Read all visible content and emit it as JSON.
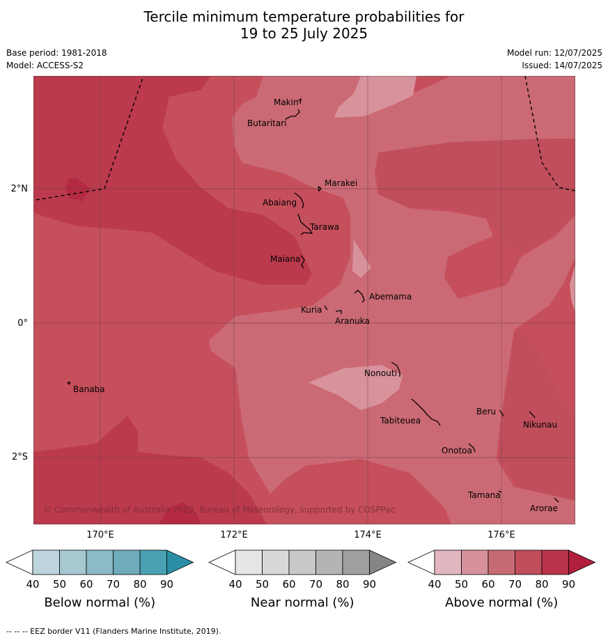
{
  "title": {
    "line1": "Tercile minimum temperature probabilities for",
    "line2": "19 to 25 July 2025"
  },
  "meta": {
    "base_period": "Base period: 1981-2018",
    "model": "Model: ACCESS-S2",
    "model_run": "Model run: 12/07/2025",
    "issued": "Issued: 14/07/2025"
  },
  "map": {
    "lat_labels": [
      "2°N",
      "0°",
      "2°S"
    ],
    "lon_labels": [
      "170°E",
      "172°E",
      "174°E",
      "176°E"
    ],
    "places": {
      "makin": "Makin",
      "butaritari": "Butaritari",
      "marakei": "Marakei",
      "abaiang": "Abaiang",
      "tarawa": "Tarawa",
      "maiana": "Maiana",
      "abemama": "Abemama",
      "kuria": "Kuria",
      "aranuka": "Aranuka",
      "nonouti": "Nonouti",
      "banaba": "Banaba",
      "beru": "Beru",
      "nikunau": "Nikunau",
      "tabiteuea": "Tabiteuea",
      "onotoa": "Onotoa",
      "tamana": "Tamana",
      "arorae": "Arorae"
    },
    "copyright": "© Commonwealth of Australia 2025, Bureau of Meteorology, supported by COSPPac"
  },
  "colorbars": {
    "below": {
      "label": "Below normal (%)",
      "ticks": [
        "40",
        "50",
        "60",
        "70",
        "80",
        "90"
      ],
      "colors": [
        "#ffffff",
        "#bdd4dc",
        "#a7c8d1",
        "#8cbac6",
        "#6eabbb",
        "#4aa1b2",
        "#2a8fa6"
      ]
    },
    "near": {
      "label": "Near normal (%)",
      "ticks": [
        "40",
        "50",
        "60",
        "70",
        "80",
        "90"
      ],
      "colors": [
        "#ffffff",
        "#e6e6e6",
        "#d8d8d8",
        "#c8c8c8",
        "#b4b4b4",
        "#a0a0a0",
        "#858585"
      ]
    },
    "above": {
      "label": "Above normal (%)",
      "ticks": [
        "40",
        "50",
        "60",
        "70",
        "80",
        "90"
      ],
      "colors": [
        "#ffffff",
        "#e2b6be",
        "#d6919b",
        "#c86a74",
        "#c04e5b",
        "#b83348",
        "#b0203c"
      ]
    }
  },
  "footer": "--  --  -- EEZ border V11 (Flanders Marine Institute, 2019)."
}
